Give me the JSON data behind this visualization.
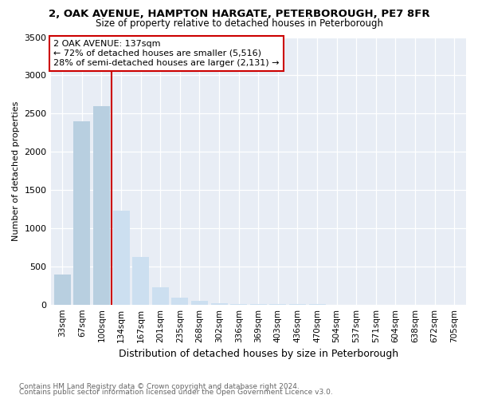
{
  "title": "2, OAK AVENUE, HAMPTON HARGATE, PETERBOROUGH, PE7 8FR",
  "subtitle": "Size of property relative to detached houses in Peterborough",
  "xlabel": "Distribution of detached houses by size in Peterborough",
  "ylabel": "Number of detached properties",
  "footnote1": "Contains HM Land Registry data © Crown copyright and database right 2024.",
  "footnote2": "Contains public sector information licensed under the Open Government Licence v3.0.",
  "annotation_line1": "2 OAK AVENUE: 137sqm",
  "annotation_line2": "← 72% of detached houses are smaller (5,516)",
  "annotation_line3": "28% of semi-detached houses are larger (2,131) →",
  "bar_color_left": "#b8cfe0",
  "bar_color_right": "#ccdff0",
  "vline_color": "#cc0000",
  "vline_x_index": 3,
  "categories": [
    "33sqm",
    "67sqm",
    "100sqm",
    "134sqm",
    "167sqm",
    "201sqm",
    "235sqm",
    "268sqm",
    "302sqm",
    "336sqm",
    "369sqm",
    "403sqm",
    "436sqm",
    "470sqm",
    "504sqm",
    "537sqm",
    "571sqm",
    "604sqm",
    "638sqm",
    "672sqm",
    "705sqm"
  ],
  "values": [
    390,
    2400,
    2600,
    1230,
    620,
    230,
    90,
    45,
    22,
    12,
    7,
    4,
    3,
    2,
    1,
    1,
    1,
    0,
    0,
    0,
    0
  ],
  "ylim": [
    0,
    3500
  ],
  "yticks": [
    0,
    500,
    1000,
    1500,
    2000,
    2500,
    3000,
    3500
  ],
  "background_color": "#ffffff",
  "plot_bg_color": "#e8edf5"
}
